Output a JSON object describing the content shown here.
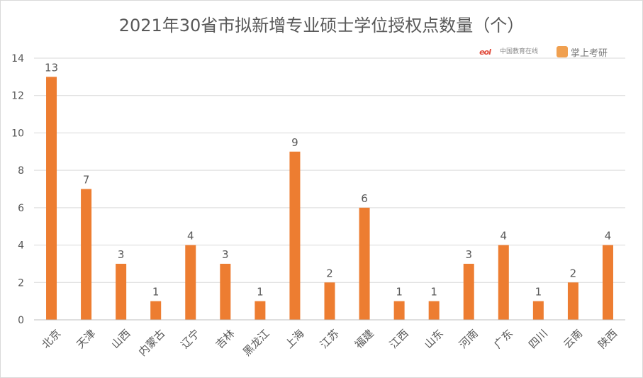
{
  "chart_data": {
    "type": "bar",
    "title": "2021年30省市拟新增专业硕士学位授权点数量（个）",
    "categories": [
      "北京",
      "天津",
      "山西",
      "内蒙古",
      "辽宁",
      "吉林",
      "黑龙江",
      "上海",
      "江苏",
      "福建",
      "江西",
      "山东",
      "河南",
      "广东",
      "四川",
      "云南",
      "陕西"
    ],
    "values": [
      13,
      7,
      3,
      1,
      4,
      3,
      1,
      9,
      2,
      6,
      1,
      1,
      3,
      4,
      1,
      2,
      4
    ],
    "ylim": [
      0,
      14
    ],
    "yticks": [
      0,
      2,
      4,
      6,
      8,
      10,
      12,
      14
    ],
    "grid": true,
    "bar_color": "#ed7d31",
    "grid_color": "#d9d9d9",
    "text_color": "#595959"
  },
  "watermarks": {
    "brand1_logo": "eol",
    "brand1_name": "中国教育在线",
    "brand2_name": "掌上考研"
  }
}
